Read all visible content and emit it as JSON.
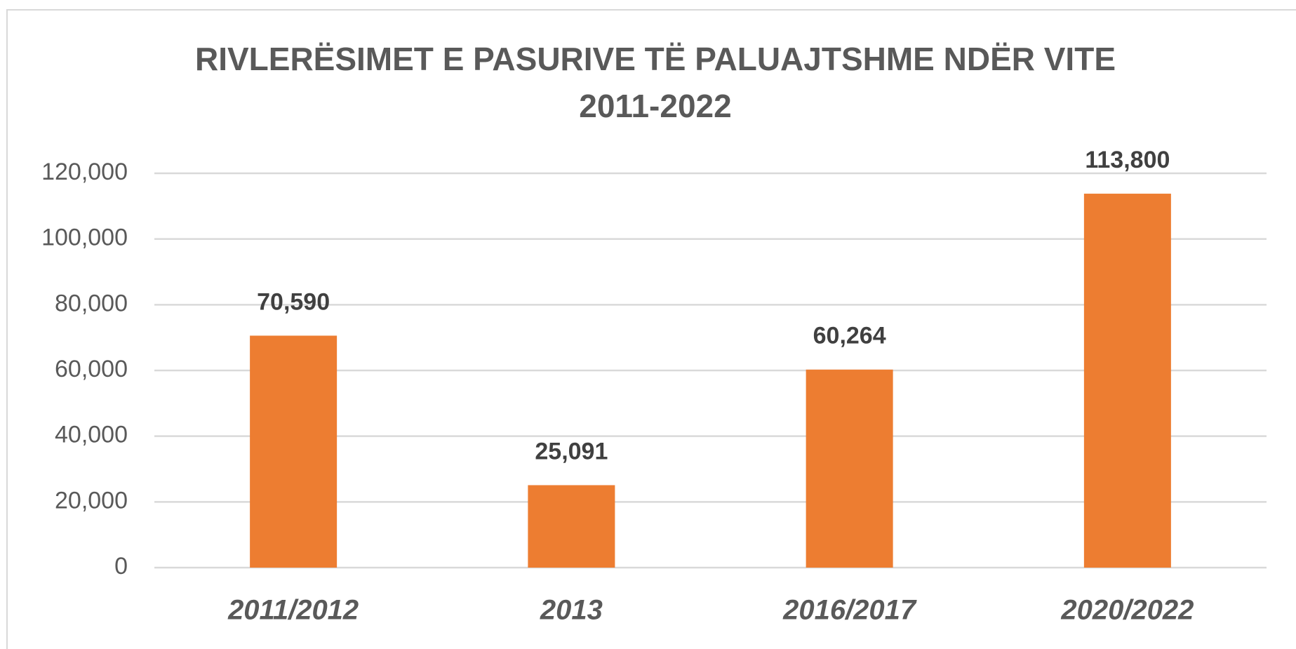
{
  "chart_data": {
    "type": "bar",
    "title": "RIVLERËSIMET E PASURIVE TË PALUAJTSHME NDËR VITE",
    "subtitle": "2011-2022",
    "categories": [
      "2011/2012",
      "2013",
      "2016/2017",
      "2020/2022"
    ],
    "values": [
      70590,
      25091,
      60264,
      113800
    ],
    "value_labels": [
      "70,590",
      "25,091",
      "60,264",
      "113,800"
    ],
    "color": "#ed7d31",
    "ylim": [
      0,
      120000
    ],
    "yticks": [
      0,
      {
        "value": 20000,
        "label": "20,000"
      },
      {
        "value": 40000,
        "label": "40,000"
      },
      {
        "value": 60000,
        "label": "60,000"
      },
      {
        "value": 80000,
        "label": "80,000"
      },
      {
        "value": 100000,
        "label": "100,000"
      },
      {
        "value": 120000,
        "label": "120,000"
      }
    ],
    "grid": true
  }
}
